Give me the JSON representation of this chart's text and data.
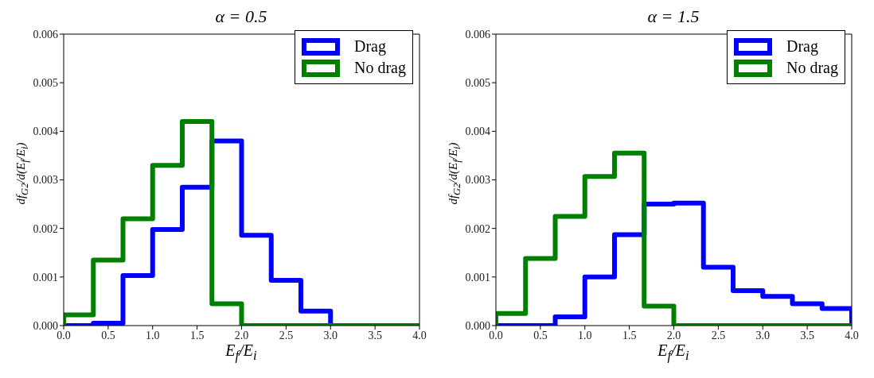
{
  "chart_data": [
    {
      "type": "histogram",
      "title": "α = 0.5",
      "xlabel": "E$_{f}$/E$_{i}$",
      "ylabel": "df$_{G2}$/d(E$_{f}$/E$_{i}$)",
      "bins": [
        0,
        0.3333,
        0.6667,
        1,
        1.3333,
        1.6667,
        2,
        2.3333,
        2.6667,
        3,
        3.3333,
        3.6667,
        4
      ],
      "series": [
        {
          "name": "Drag",
          "color": "#0000ff",
          "values": [
            0,
            5e-05,
            0.00103,
            0.00198,
            0.00285,
            0.0038,
            0.00186,
            0.00093,
            0.0003,
            0,
            0,
            0
          ]
        },
        {
          "name": "No drag",
          "color": "#008000",
          "values": [
            0.00022,
            0.00135,
            0.0022,
            0.0033,
            0.0042,
            0.00045,
            0,
            0,
            0,
            0,
            0,
            0
          ]
        }
      ],
      "xlim": [
        0,
        4
      ],
      "ylim": [
        0,
        0.006
      ],
      "xticks": [
        {
          "value": 0,
          "label": "0.0"
        },
        0.5,
        {
          "value": 1,
          "label": "1.0"
        },
        1.5,
        {
          "value": 2,
          "label": "2.0"
        },
        2.5,
        {
          "value": 3,
          "label": "3.0"
        },
        3.5,
        {
          "value": 4,
          "label": "4.0"
        }
      ],
      "yticks": [
        {
          "value": 0,
          "label": "0.000"
        },
        0.001,
        0.002,
        0.003,
        0.004,
        0.005,
        0.006
      ],
      "legend": "top right",
      "grid": false
    },
    {
      "type": "histogram",
      "title": "α = 1.5",
      "xlabel": "E$_{f}$/E$_{i}$",
      "ylabel": "df$_{G2}$/d(E$_{f}$/E$_{i}$)",
      "bins": [
        0,
        0.3333,
        0.6667,
        1,
        1.3333,
        1.6667,
        2,
        2.3333,
        2.6667,
        3,
        3.3333,
        3.6667,
        4
      ],
      "series": [
        {
          "name": "Drag",
          "color": "#0000ff",
          "values": [
            0,
            0,
            0.00018,
            0.001,
            0.00187,
            0.0025,
            0.00252,
            0.0012,
            0.00072,
            0.0006,
            0.00045,
            0.00035
          ]
        },
        {
          "name": "No drag",
          "color": "#008000",
          "values": [
            0.00025,
            0.00138,
            0.00225,
            0.00307,
            0.00355,
            0.0004,
            0,
            0,
            0,
            0,
            0,
            0
          ]
        }
      ],
      "xlim": [
        0,
        4
      ],
      "ylim": [
        0,
        0.006
      ],
      "xticks": [
        {
          "value": 0,
          "label": "0.0"
        },
        0.5,
        {
          "value": 1,
          "label": "1.0"
        },
        1.5,
        {
          "value": 2,
          "label": "2.0"
        },
        2.5,
        {
          "value": 3,
          "label": "3.0"
        },
        3.5,
        {
          "value": 4,
          "label": "4.0"
        }
      ],
      "yticks": [
        {
          "value": 0,
          "label": "0.000"
        },
        0.001,
        0.002,
        0.003,
        0.004,
        0.005,
        0.006
      ],
      "legend": "top right",
      "grid": false
    }
  ]
}
